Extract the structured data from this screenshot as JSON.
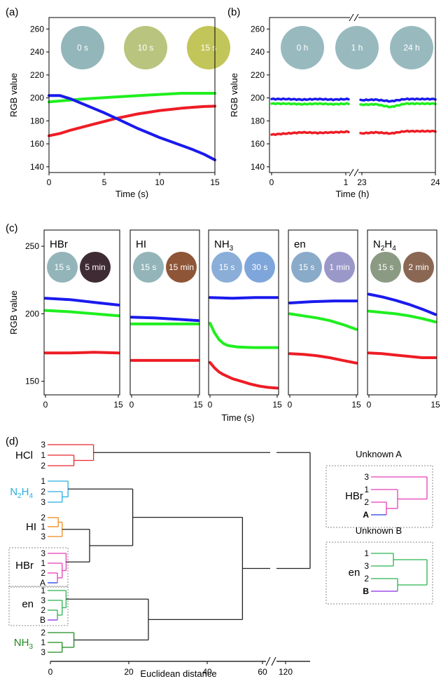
{
  "colors": {
    "red": "#ee1c25",
    "green": "#1fef1f",
    "blue": "#1a1aee",
    "hcl": "#e8282c",
    "n2h4": "#27aee0",
    "hi": "#ef8a1d",
    "hbr": "#e83fb6",
    "unknown_a": "#1f3fe8",
    "en": "#29b44f",
    "unknown_b": "#8a2be2",
    "nh3": "#1f8a1f"
  },
  "chart_data": [
    {
      "id": "a",
      "type": "line",
      "panel_label": "(a)",
      "xlabel": "Time (s)",
      "ylabel": "RGB value",
      "xlim": [
        0,
        15
      ],
      "ylim": [
        135,
        270
      ],
      "xticks": [
        0,
        5,
        10,
        15
      ],
      "yticks": [
        140,
        160,
        180,
        200,
        220,
        240,
        260
      ],
      "swatches": [
        {
          "label": "0 s",
          "color": "#93b6ba"
        },
        {
          "label": "10 s",
          "color": "#b9c57e"
        },
        {
          "label": "15 s",
          "color": "#c2c65a"
        }
      ],
      "series": [
        {
          "color": "red",
          "x": [
            0,
            1,
            2,
            3,
            4,
            5,
            6,
            7,
            8,
            9,
            10,
            11,
            12,
            13,
            14,
            15
          ],
          "y": [
            167,
            169,
            172,
            174.5,
            177,
            179.5,
            182,
            184,
            186,
            187.5,
            189,
            190,
            191,
            191.8,
            192.5,
            192.8
          ]
        },
        {
          "color": "green",
          "x": [
            0,
            3,
            6,
            9,
            12,
            15
          ],
          "y": [
            196.5,
            199,
            200.8,
            202.5,
            204,
            204
          ]
        },
        {
          "color": "blue",
          "x": [
            0,
            1,
            2,
            3,
            4,
            5,
            6,
            7,
            8,
            9,
            10,
            11,
            12,
            13,
            14,
            15
          ],
          "y": [
            202,
            202,
            199,
            195,
            191,
            187,
            182.5,
            178,
            173.5,
            169.5,
            165.5,
            162,
            158.5,
            155,
            151,
            146
          ]
        }
      ]
    },
    {
      "id": "b",
      "type": "line",
      "panel_label": "(b)",
      "xlabel": "Time (h)",
      "ylabel": "RGB value",
      "ylim": [
        135,
        270
      ],
      "yticks": [
        140,
        160,
        180,
        200,
        220,
        240,
        260
      ],
      "xticks": [
        0,
        1,
        23,
        24
      ],
      "swatches": [
        {
          "label": "0 h",
          "color": "#98babf"
        },
        {
          "label": "1 h",
          "color": "#98babf"
        },
        {
          "label": "24 h",
          "color": "#98babf"
        }
      ],
      "segments": [
        {
          "xlim": [
            0,
            1
          ],
          "series": [
            {
              "color": "blue",
              "x": [
                0,
                0.2,
                0.4,
                0.6,
                0.8,
                1
              ],
              "y": [
                199,
                199,
                198.5,
                199,
                198.5,
                199
              ]
            },
            {
              "color": "green",
              "x": [
                0,
                0.2,
                0.4,
                0.6,
                0.8,
                1
              ],
              "y": [
                195,
                195,
                194.5,
                195,
                194.5,
                195
              ]
            },
            {
              "color": "red",
              "x": [
                0,
                0.2,
                0.4,
                0.6,
                0.8,
                1
              ],
              "y": [
                168,
                169,
                170,
                169.5,
                170,
                170.5
              ]
            }
          ]
        },
        {
          "xlim": [
            23,
            24
          ],
          "series": [
            {
              "color": "blue",
              "x": [
                23,
                23.2,
                23.4,
                23.6,
                23.8,
                24
              ],
              "y": [
                198,
                198.5,
                197,
                199,
                199,
                199
              ]
            },
            {
              "color": "green",
              "x": [
                23,
                23.2,
                23.4,
                23.6,
                23.8,
                24
              ],
              "y": [
                194,
                194.5,
                192,
                195,
                195,
                195
              ]
            },
            {
              "color": "red",
              "x": [
                23,
                23.2,
                23.4,
                23.6,
                23.8,
                24
              ],
              "y": [
                169,
                170,
                169,
                171,
                171,
                171
              ]
            }
          ]
        }
      ]
    },
    {
      "id": "c",
      "type": "line",
      "panel_label": "(c)",
      "xlabel": "Time (s)",
      "ylabel": "RGB value",
      "xlim": [
        0,
        15
      ],
      "ylim": [
        140,
        262
      ],
      "yticks": [
        150,
        200,
        250
      ],
      "xticks": [
        0,
        15
      ],
      "subplots": [
        {
          "label": "HBr",
          "label_sub": "",
          "swatches": [
            {
              "label": "15 s",
              "color": "#93b5b9"
            },
            {
              "label": "5 min",
              "color": "#3f2b33"
            }
          ],
          "series": [
            {
              "color": "blue",
              "x": [
                0,
                5,
                10,
                15
              ],
              "y": [
                211.5,
                210.5,
                208.5,
                206.5
              ]
            },
            {
              "color": "green",
              "x": [
                0,
                5,
                10,
                15
              ],
              "y": [
                202.5,
                201.5,
                200,
                198.5
              ]
            },
            {
              "color": "red",
              "x": [
                0,
                5,
                10,
                15
              ],
              "y": [
                171,
                171,
                171.5,
                171
              ]
            }
          ]
        },
        {
          "label": "HI",
          "label_sub": "",
          "swatches": [
            {
              "label": "15 s",
              "color": "#93b5b9"
            },
            {
              "label": "15 min",
              "color": "#8e5537"
            }
          ],
          "series": [
            {
              "color": "blue",
              "x": [
                0,
                5,
                10,
                15
              ],
              "y": [
                197.5,
                197,
                196,
                195
              ]
            },
            {
              "color": "green",
              "x": [
                0,
                5,
                10,
                15
              ],
              "y": [
                192.5,
                192.5,
                192.5,
                192.5
              ]
            },
            {
              "color": "red",
              "x": [
                0,
                5,
                10,
                15
              ],
              "y": [
                165.5,
                165.5,
                165.5,
                165.5
              ]
            }
          ]
        },
        {
          "label": "NH",
          "label_sub": "3",
          "swatches": [
            {
              "label": "15 s",
              "color": "#8aaed8"
            },
            {
              "label": "30 s",
              "color": "#7fa6db"
            }
          ],
          "series": [
            {
              "color": "blue",
              "x": [
                0,
                5,
                10,
                15
              ],
              "y": [
                212,
                211.5,
                212,
                212
              ]
            },
            {
              "color": "green",
              "x": [
                0,
                1,
                2,
                3,
                4,
                6,
                8,
                10,
                15
              ],
              "y": [
                193,
                186,
                181,
                178,
                176.5,
                175.5,
                175.2,
                175,
                175
              ]
            },
            {
              "color": "red",
              "x": [
                0,
                1,
                2,
                3,
                5,
                7,
                9,
                11,
                13,
                15
              ],
              "y": [
                164,
                160,
                157,
                155,
                152,
                150,
                148,
                146.5,
                145.5,
                145
              ]
            }
          ]
        },
        {
          "label": "en",
          "label_sub": "",
          "swatches": [
            {
              "label": "15 s",
              "color": "#8aaac9"
            },
            {
              "label": "1 min",
              "color": "#9a97c9"
            }
          ],
          "series": [
            {
              "color": "blue",
              "x": [
                0,
                5,
                10,
                15
              ],
              "y": [
                208,
                209,
                209.5,
                209.5
              ]
            },
            {
              "color": "green",
              "x": [
                0,
                3,
                6,
                9,
                12,
                15
              ],
              "y": [
                200,
                198.5,
                197,
                195,
                192,
                188.5
              ]
            },
            {
              "color": "red",
              "x": [
                0,
                3,
                6,
                9,
                12,
                15
              ],
              "y": [
                170.5,
                170,
                169,
                167.5,
                165.5,
                163.5
              ]
            }
          ]
        },
        {
          "label": "N",
          "label_sub": "2",
          "label_tail": "H",
          "label_sub2": "4",
          "swatches": [
            {
              "label": "15 s",
              "color": "#8b9a82"
            },
            {
              "label": "2 min",
              "color": "#8a6753"
            }
          ],
          "series": [
            {
              "color": "blue",
              "x": [
                0,
                3,
                6,
                9,
                12,
                15
              ],
              "y": [
                214.5,
                212.5,
                210,
                207,
                203.5,
                199.5
              ]
            },
            {
              "color": "green",
              "x": [
                0,
                3,
                6,
                9,
                12,
                15
              ],
              "y": [
                202,
                201,
                200,
                198.5,
                196.5,
                194
              ]
            },
            {
              "color": "red",
              "x": [
                0,
                3,
                6,
                9,
                12,
                15
              ],
              "y": [
                171,
                170.5,
                169.5,
                168.5,
                167.5,
                167.5
              ]
            }
          ]
        }
      ]
    },
    {
      "id": "d",
      "type": "dendrogram",
      "panel_label": "(d)",
      "xlabel": "Euclidean distance",
      "xticks": [
        0,
        20,
        40,
        60,
        120
      ],
      "clusters": [
        {
          "name": "HCl",
          "leaves": [
            "3",
            "1",
            "2"
          ],
          "color": "hcl"
        },
        {
          "name": "N2H4",
          "leaves": [
            "1",
            "2",
            "3"
          ],
          "color": "n2h4"
        },
        {
          "name": "HI",
          "leaves": [
            "2",
            "1",
            "3"
          ],
          "color": "hi"
        },
        {
          "name": "HBr",
          "leaves": [
            "3",
            "1",
            "2",
            "A"
          ],
          "color": "hbr"
        },
        {
          "name": "en",
          "leaves": [
            "1",
            "3",
            "2",
            "B"
          ],
          "color": "en"
        },
        {
          "name": "NH3",
          "leaves": [
            "2",
            "1",
            "3"
          ],
          "color": "nh3"
        }
      ],
      "merge_distances": {
        "hcl": 11,
        "n2h4": 4.5,
        "hi": 3,
        "hbr": 4,
        "en": 4,
        "nh3": 6,
        "hi_hbr": 10,
        "n2h4_hibr": 21,
        "en_nh3": 25,
        "left_right": 49,
        "root": 130
      },
      "insets": [
        {
          "title": "Unknown A",
          "group": "HBr",
          "leaves": [
            "3",
            "1",
            "2",
            "A"
          ]
        },
        {
          "title": "Unknown B",
          "group": "en",
          "leaves": [
            "1",
            "3",
            "2",
            "B"
          ]
        }
      ]
    }
  ]
}
